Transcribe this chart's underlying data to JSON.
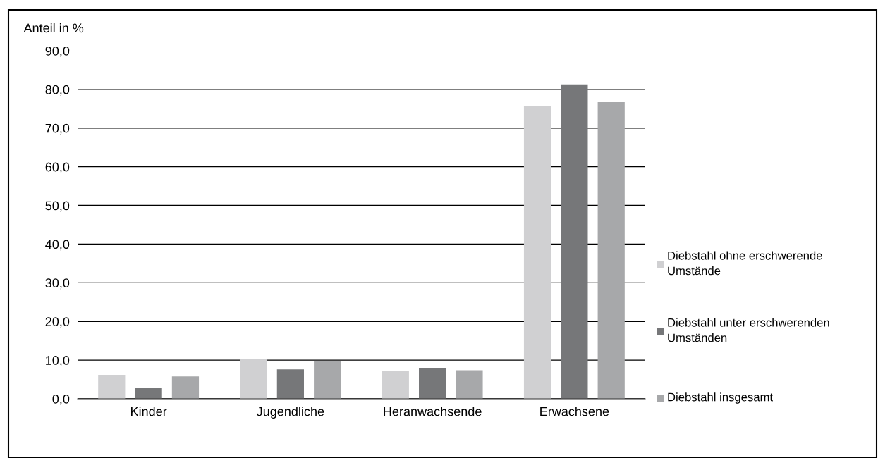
{
  "chart_data": {
    "type": "bar",
    "ylabel": "Anteil in %",
    "categories": [
      "Kinder",
      "Jugendliche",
      "Heranwachsende",
      "Erwachsene"
    ],
    "series": [
      {
        "name": "Diebstahl ohne erschwerende Umstände",
        "color": "#d0d0d2",
        "values": [
          6.2,
          10.3,
          7.3,
          75.8
        ]
      },
      {
        "name": "Diebstahl unter erschwerenden Umständen",
        "color": "#767779",
        "values": [
          2.9,
          7.6,
          8.0,
          81.3
        ]
      },
      {
        "name": "Diebstahl insgesamt",
        "color": "#a7a8aa",
        "values": [
          5.8,
          9.7,
          7.4,
          76.7
        ]
      }
    ],
    "ylim": [
      0,
      90
    ],
    "yticks": [
      {
        "value": 0,
        "label": "0,0"
      },
      {
        "value": 10,
        "label": "10,0"
      },
      {
        "value": 20,
        "label": "20,0"
      },
      {
        "value": 30,
        "label": "30,0"
      },
      {
        "value": 40,
        "label": "40,0"
      },
      {
        "value": 50,
        "label": "50,0"
      },
      {
        "value": 60,
        "label": "60,0"
      },
      {
        "value": 70,
        "label": "70,0"
      },
      {
        "value": 80,
        "label": "80,0"
      },
      {
        "value": 90,
        "label": "90,0"
      }
    ],
    "grid": "y",
    "legend": "right"
  }
}
